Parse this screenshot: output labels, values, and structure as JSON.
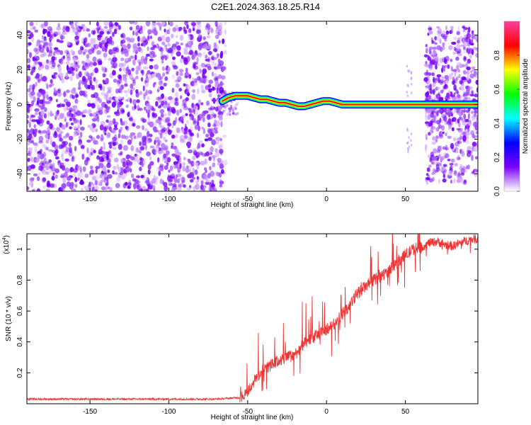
{
  "title": "C2E1.2024.363.18.25.R14",
  "chart_data": [
    {
      "type": "heatmap",
      "xlabel": "Height of straight line (km)",
      "ylabel": "Frequency (Hz)",
      "xlim": [
        -190,
        96
      ],
      "ylim": [
        -50,
        48
      ],
      "xticks": [
        -150,
        -100,
        -50,
        0,
        50
      ],
      "yticks": [
        -40,
        -20,
        0,
        20,
        40
      ],
      "colorbar": {
        "label": "Normalized spectral amplitude",
        "range": [
          0,
          1
        ],
        "ticks": [
          "0.0",
          "0.2",
          "0.4",
          "0.6",
          "0.8"
        ],
        "colormap": [
          "#ffffff",
          "#7b00ff",
          "#0000ff",
          "#00ffff",
          "#00ff00",
          "#ffff00",
          "#ff0000",
          "#ff40a0"
        ]
      },
      "regions": {
        "noise_scatter_left": [
          -190,
          -64
        ],
        "carrier_track": [
          -66,
          62
        ],
        "noise_scatter_right": [
          63,
          96
        ]
      },
      "carrier_frequency": {
        "x": [
          -66,
          -62,
          -58,
          -54,
          -50,
          -46,
          -42,
          -38,
          -34,
          -30,
          -26,
          -22,
          -18,
          -14,
          -10,
          -6,
          -2,
          2,
          6,
          10,
          20,
          30,
          40,
          50,
          60,
          70,
          80,
          90,
          96
        ],
        "y": [
          2,
          4,
          5,
          5,
          5,
          4,
          3,
          3,
          2,
          1,
          1,
          0,
          -1,
          -1,
          0,
          1,
          2,
          2,
          1,
          0,
          0,
          0,
          0,
          0,
          0,
          0,
          0,
          0,
          0
        ]
      }
    },
    {
      "type": "line",
      "xlabel": "Height of straight line (km)",
      "ylabel": "SNR (10 * v/v)",
      "yscale_label": "(x10",
      "yscale_exp": "4",
      "xlim": [
        -190,
        96
      ],
      "ylim": [
        0,
        1.1
      ],
      "xticks": [
        -150,
        -100,
        -50,
        0,
        50
      ],
      "yticks": [
        0.2,
        0.4,
        0.6,
        0.8,
        1.0
      ],
      "yticklabels": [
        "0.2",
        "0.4",
        "0.6",
        "0.8",
        "1"
      ],
      "color": "#ee3333",
      "series": [
        {
          "x": [
            -190,
            -150,
            -100,
            -70,
            -55,
            -50,
            -45,
            -40,
            -35,
            -30,
            -25,
            -20,
            -15,
            -10,
            -5,
            0,
            5,
            10,
            15,
            20,
            25,
            30,
            35,
            40,
            45,
            50,
            55,
            60,
            65,
            70,
            75,
            80,
            85,
            90,
            96
          ],
          "y": [
            0.03,
            0.03,
            0.03,
            0.03,
            0.04,
            0.08,
            0.16,
            0.22,
            0.25,
            0.28,
            0.3,
            0.32,
            0.38,
            0.42,
            0.45,
            0.48,
            0.52,
            0.58,
            0.64,
            0.72,
            0.76,
            0.8,
            0.83,
            0.86,
            0.92,
            0.96,
            1.0,
            1.01,
            1.04,
            1.05,
            1.03,
            1.02,
            1.04,
            1.06,
            1.07
          ]
        }
      ]
    }
  ]
}
